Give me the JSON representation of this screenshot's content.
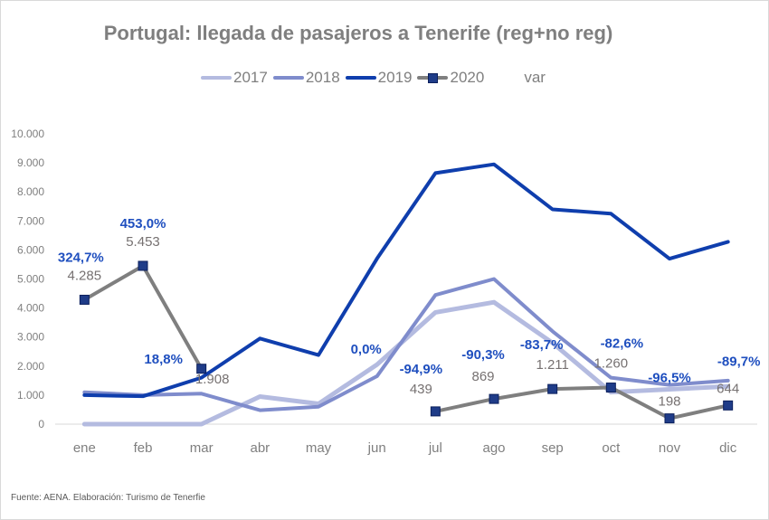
{
  "chart_data": {
    "type": "line",
    "title": "Portugal: llegada de pasajeros a Tenerife (reg+no reg)",
    "xlabel": "",
    "ylabel": "",
    "ylim": [
      0,
      10000
    ],
    "y_ticks": [
      0,
      1000,
      2000,
      3000,
      4000,
      5000,
      6000,
      7000,
      8000,
      9000,
      10000
    ],
    "y_tick_labels": [
      "0",
      "1.000",
      "2.000",
      "3.000",
      "4.000",
      "5.000",
      "6.000",
      "7.000",
      "8.000",
      "9.000",
      "10.000"
    ],
    "categories": [
      "ene",
      "feb",
      "mar",
      "abr",
      "may",
      "jun",
      "jul",
      "ago",
      "sep",
      "oct",
      "nov",
      "dic"
    ],
    "grid": false,
    "legend_position": "top",
    "legend": [
      "2017",
      "2018",
      "2019",
      "2020",
      "var"
    ],
    "series": [
      {
        "name": "2017",
        "color": "#b4bbe0",
        "values": [
          0,
          0,
          0,
          950,
          700,
          2050,
          3850,
          4200,
          2800,
          1100,
          1200,
          1300
        ]
      },
      {
        "name": "2018",
        "color": "#7f8ccc",
        "values": [
          1100,
          1000,
          1050,
          480,
          600,
          1650,
          4450,
          5000,
          3200,
          1600,
          1350,
          1500
        ]
      },
      {
        "name": "2019",
        "color": "#0f3ead",
        "values": [
          1000,
          960,
          1600,
          2950,
          2380,
          5700,
          8650,
          8950,
          7400,
          7250,
          5700,
          6280
        ]
      },
      {
        "name": "2020",
        "color": "#7f7f7f",
        "marker_color": "#1f3c88",
        "values": [
          4285,
          5453,
          1908,
          null,
          null,
          null,
          439,
          869,
          1211,
          1260,
          198,
          644
        ]
      }
    ],
    "data_labels_2020": [
      "4.285",
      "5.453",
      "1.908",
      "",
      "",
      "",
      "439",
      "869",
      "1.211",
      "1.260",
      "198",
      "644"
    ],
    "var_labels": [
      "324,7%",
      "453,0%",
      "18,8%",
      "",
      "",
      "0,0%",
      "-94,9%",
      "-90,3%",
      "-83,7%",
      "-82,6%",
      "-96,5%",
      "-89,7%"
    ],
    "var_color": "#1f4fbf",
    "source": "Fuente: AENA. Elaboración: Turismo de Tenerfie"
  }
}
